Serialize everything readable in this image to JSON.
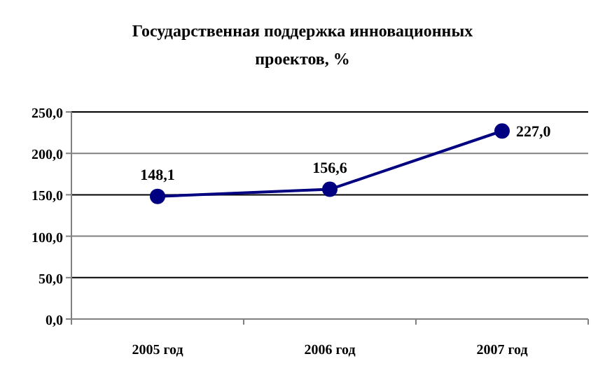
{
  "chart_data": {
    "type": "line",
    "title": "Государственная поддержка инновационных проектов, %",
    "categories": [
      "2005 год",
      "2006 год",
      "2007 год"
    ],
    "series": [
      {
        "color": "#000080",
        "values": [
          148.1,
          156.6,
          227.0
        ],
        "value_labels": [
          "148,1",
          "156,6",
          "227,0"
        ]
      }
    ],
    "ylim": [
      0,
      250
    ],
    "yticks": [
      {
        "value": 0,
        "label": "0,0"
      },
      {
        "value": 50,
        "label": "50,0"
      },
      {
        "value": 100,
        "label": "100,0"
      },
      {
        "value": 150,
        "label": "150,0"
      },
      {
        "value": 200,
        "label": "200,0"
      },
      {
        "value": 250,
        "label": "250,0"
      }
    ],
    "grid": "y",
    "marker": "circle"
  }
}
